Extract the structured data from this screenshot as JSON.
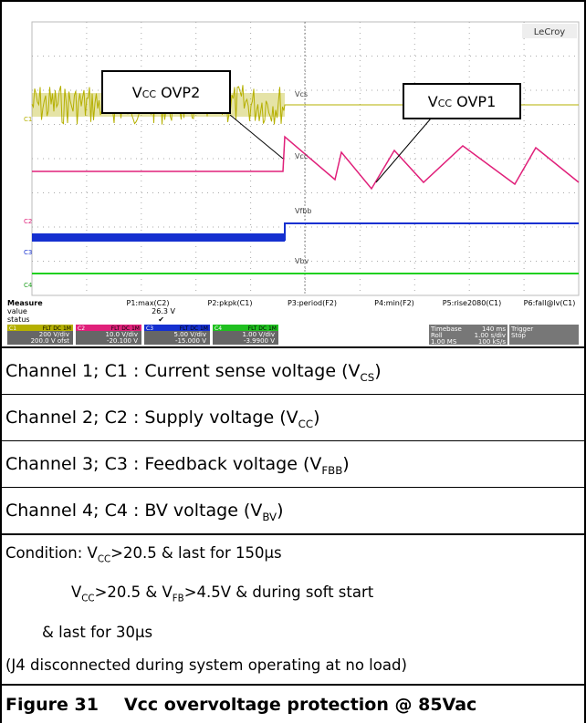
{
  "scope": {
    "brand": "LeCroy",
    "annotations": [
      [
        "V",
        "CC",
        " OVP2"
      ],
      [
        "V",
        "CC",
        " OVP1"
      ]
    ],
    "trace_labels": [
      "Vcs",
      "Vcc",
      "Vfbb",
      "Vbv"
    ],
    "channels": [
      "C1",
      "C2",
      "C3",
      "C4"
    ],
    "measure": {
      "title": "Measure",
      "rows": [
        "value",
        "status"
      ],
      "params": [
        "P1:max(C2)",
        "P2:pkpk(C1)",
        "P3:period(F2)",
        "P4:min(F2)",
        "P5:rise2080(C1)",
        "P6:fall@lv(C1)"
      ],
      "p1_value": "26.3 V",
      "p1_status": "✔"
    },
    "channel_boxes": [
      {
        "name": "C1",
        "tag": "FLT DC 1M",
        "scale": "200 V/div",
        "offset": "200.0 V ofst"
      },
      {
        "name": "C2",
        "tag": "FLT DC 1M",
        "scale": "10.0 V/div",
        "offset": "-20.100 V"
      },
      {
        "name": "C3",
        "tag": "FLT DC 1M",
        "scale": "5.00 V/div",
        "offset": "-15.000 V"
      },
      {
        "name": "C4",
        "tag": "FLT DC 1M",
        "scale": "1.00 V/div",
        "offset": "-3.9900 V"
      }
    ],
    "timebase": {
      "label": "Timebase",
      "value": "140 ms",
      "roll": "Roll",
      "rate": "1.00 s/div",
      "samples": "1.00 MS",
      "srate": "100 kS/s"
    },
    "trigger": {
      "label": "Trigger",
      "mode": "Stop"
    }
  },
  "channel_lines": [
    [
      "Channel 1; C1 : Current sense voltage (V",
      "CS",
      ")"
    ],
    [
      "Channel 2; C2 : Supply voltage (V",
      "CC",
      ")"
    ],
    [
      "Channel 3; C3 : Feedback voltage (V",
      "FBB",
      ")"
    ],
    [
      "Channel 4; C4 : BV voltage (V",
      "BV",
      ")"
    ]
  ],
  "condition_lines": [
    [
      "Condition:  V",
      "CC",
      ">20.5 & last for 150µs"
    ],
    [
      "V",
      "CC",
      ">20.5 & V",
      "FB",
      ">4.5V & during soft start"
    ],
    [
      "& last for 30µs"
    ],
    [
      "(J4 disconnected during system operating at no load)"
    ]
  ],
  "caption": {
    "number": "Figure 31",
    "text": "Vcc overvoltage protection @ 85Vac"
  }
}
